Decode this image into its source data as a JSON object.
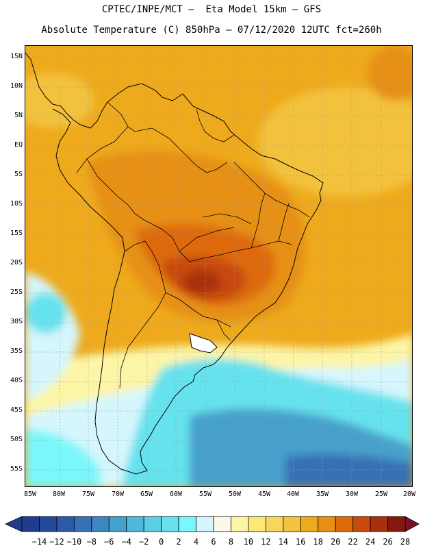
{
  "header": {
    "title_line1": "CPTEC/INPE/MCT –  Eta Model 15km – GFS",
    "title_line2": "Absolute Temperature (C) 850hPa – 07/12/2020 12UTC fct=260h"
  },
  "map": {
    "lat_labels": [
      "15N",
      "10N",
      "5N",
      "EQ",
      "5S",
      "10S",
      "15S",
      "20S",
      "25S",
      "30S",
      "35S",
      "40S",
      "45S",
      "50S",
      "55S"
    ],
    "lon_labels": [
      "85W",
      "80W",
      "75W",
      "70W",
      "65W",
      "60W",
      "55W",
      "50W",
      "45W",
      "40W",
      "35W",
      "30W",
      "25W",
      "20W"
    ],
    "lat_range": [
      17.5,
      -57.5
    ],
    "lon_range": [
      -86,
      -19
    ],
    "grid": "dotted"
  },
  "colorbar": {
    "labels": [
      "-14",
      "-12",
      "-10",
      "-8",
      "-6",
      "-4",
      "-2",
      "0",
      "2",
      "4",
      "6",
      "8",
      "10",
      "12",
      "14",
      "16",
      "18",
      "20",
      "22",
      "24",
      "26",
      "28"
    ],
    "colors": [
      "#1f3d8c",
      "#24489a",
      "#2b5aa6",
      "#3770b4",
      "#3e86c0",
      "#46a0cc",
      "#4fb8d8",
      "#5acfe4",
      "#66e2ee",
      "#7af7fb",
      "#d5f6fd",
      "#fdf9e8",
      "#fdf5a6",
      "#fbe876",
      "#f7d65e",
      "#f3c23e",
      "#eeaa1c",
      "#e69014",
      "#de6a0a",
      "#c84a0c",
      "#a8300c",
      "#84180e"
    ]
  }
}
